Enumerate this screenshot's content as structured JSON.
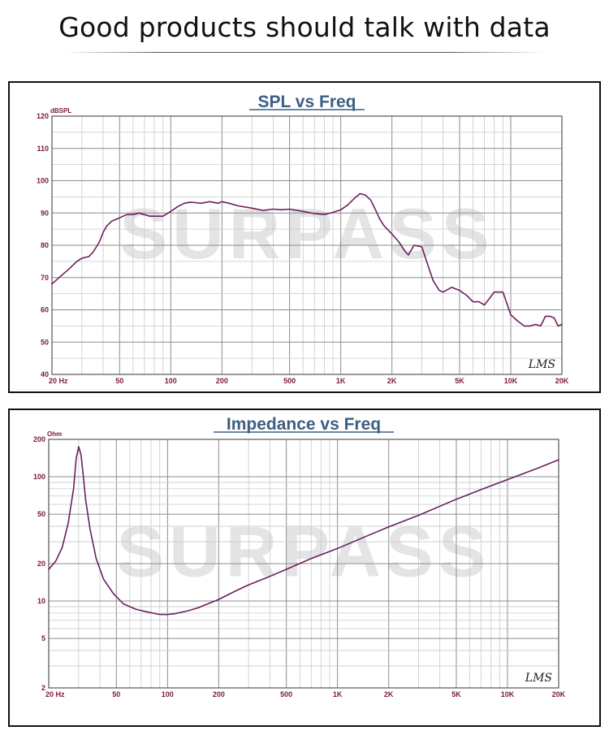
{
  "header": {
    "title": "Good products should talk with data"
  },
  "chart_data": [
    {
      "type": "line",
      "title": "SPL vs Freq",
      "ylabel": "dBSPL",
      "x_scale": "log",
      "xlim": [
        20,
        20000
      ],
      "ylim": [
        40,
        120
      ],
      "grid": true,
      "x_tick_labels": [
        "20 Hz",
        "50",
        "100",
        "200",
        "500",
        "1K",
        "2K",
        "5K",
        "10K",
        "20K"
      ],
      "y_tick_labels": [
        "40",
        "50",
        "60",
        "70",
        "80",
        "90",
        "100",
        "110",
        "120"
      ],
      "watermark": "SURPASS",
      "signature": "LMS",
      "color": "#6b1f5e",
      "series": [
        {
          "x": [
            20,
            22,
            25,
            28,
            30,
            33,
            35,
            38,
            40,
            42,
            45,
            50,
            55,
            60,
            65,
            70,
            75,
            80,
            90,
            100,
            110,
            120,
            130,
            140,
            150,
            170,
            190,
            200,
            220,
            250,
            300,
            350,
            400,
            450,
            500,
            600,
            700,
            800,
            900,
            1000,
            1100,
            1200,
            1300,
            1400,
            1500,
            1600,
            1700,
            1800,
            2000,
            2200,
            2400,
            2500,
            2700,
            3000,
            3200,
            3500,
            3800,
            4000,
            4500,
            5000,
            5500,
            6000,
            6500,
            7000,
            8000,
            9000,
            10000,
            11000,
            12000,
            13000,
            14000,
            15000,
            16000,
            17000,
            18000,
            19000,
            20000
          ],
          "y": [
            68,
            70,
            72.5,
            75,
            76,
            76.5,
            78,
            81,
            84,
            86,
            87.5,
            88.5,
            89.5,
            89.5,
            90,
            89.5,
            89,
            89,
            89,
            90.5,
            92,
            93,
            93.3,
            93.2,
            93,
            93.5,
            93,
            93.5,
            93,
            92.2,
            91.5,
            90.8,
            91.2,
            91,
            91.2,
            90.5,
            89.8,
            89.5,
            90.2,
            91,
            92.5,
            94.5,
            96,
            95.5,
            94,
            91,
            88,
            86,
            83.5,
            81,
            78,
            77,
            80,
            79.5,
            75,
            69,
            66,
            65.5,
            67,
            66,
            64.5,
            62.5,
            62.5,
            61.5,
            65.5,
            65.5,
            58.5,
            56.5,
            55,
            55,
            55.5,
            55,
            58,
            58,
            57.5,
            55,
            55.5
          ]
        }
      ]
    },
    {
      "type": "line",
      "title": "Impedance vs Freq",
      "ylabel": "Ohm",
      "x_scale": "log",
      "y_scale": "log",
      "xlim": [
        20,
        20000
      ],
      "ylim": [
        2,
        200
      ],
      "grid": true,
      "x_tick_labels": [
        "20 Hz",
        "50",
        "100",
        "200",
        "500",
        "1K",
        "2K",
        "5K",
        "10K",
        "20K"
      ],
      "y_tick_labels": [
        "2",
        "5",
        "10",
        "20",
        "50",
        "100",
        "200"
      ],
      "watermark": "SURPASS",
      "signature": "LMS",
      "color": "#6b1f5e",
      "series": [
        {
          "x": [
            20,
            22,
            24,
            26,
            28,
            29,
            30,
            31,
            32,
            33,
            35,
            38,
            42,
            48,
            55,
            65,
            75,
            90,
            100,
            110,
            130,
            150,
            200,
            250,
            300,
            400,
            500,
            700,
            1000,
            1500,
            2000,
            3000,
            5000,
            7000,
            10000,
            15000,
            20000
          ],
          "y": [
            18,
            21,
            27,
            42,
            80,
            140,
            175,
            150,
            100,
            65,
            38,
            22,
            15,
            11.5,
            9.5,
            8.6,
            8.2,
            7.8,
            7.8,
            7.9,
            8.3,
            8.8,
            10.3,
            12,
            13.5,
            15.8,
            18,
            22,
            26.5,
            33.5,
            39.5,
            49,
            66,
            79,
            95,
            117,
            137
          ]
        }
      ]
    }
  ]
}
